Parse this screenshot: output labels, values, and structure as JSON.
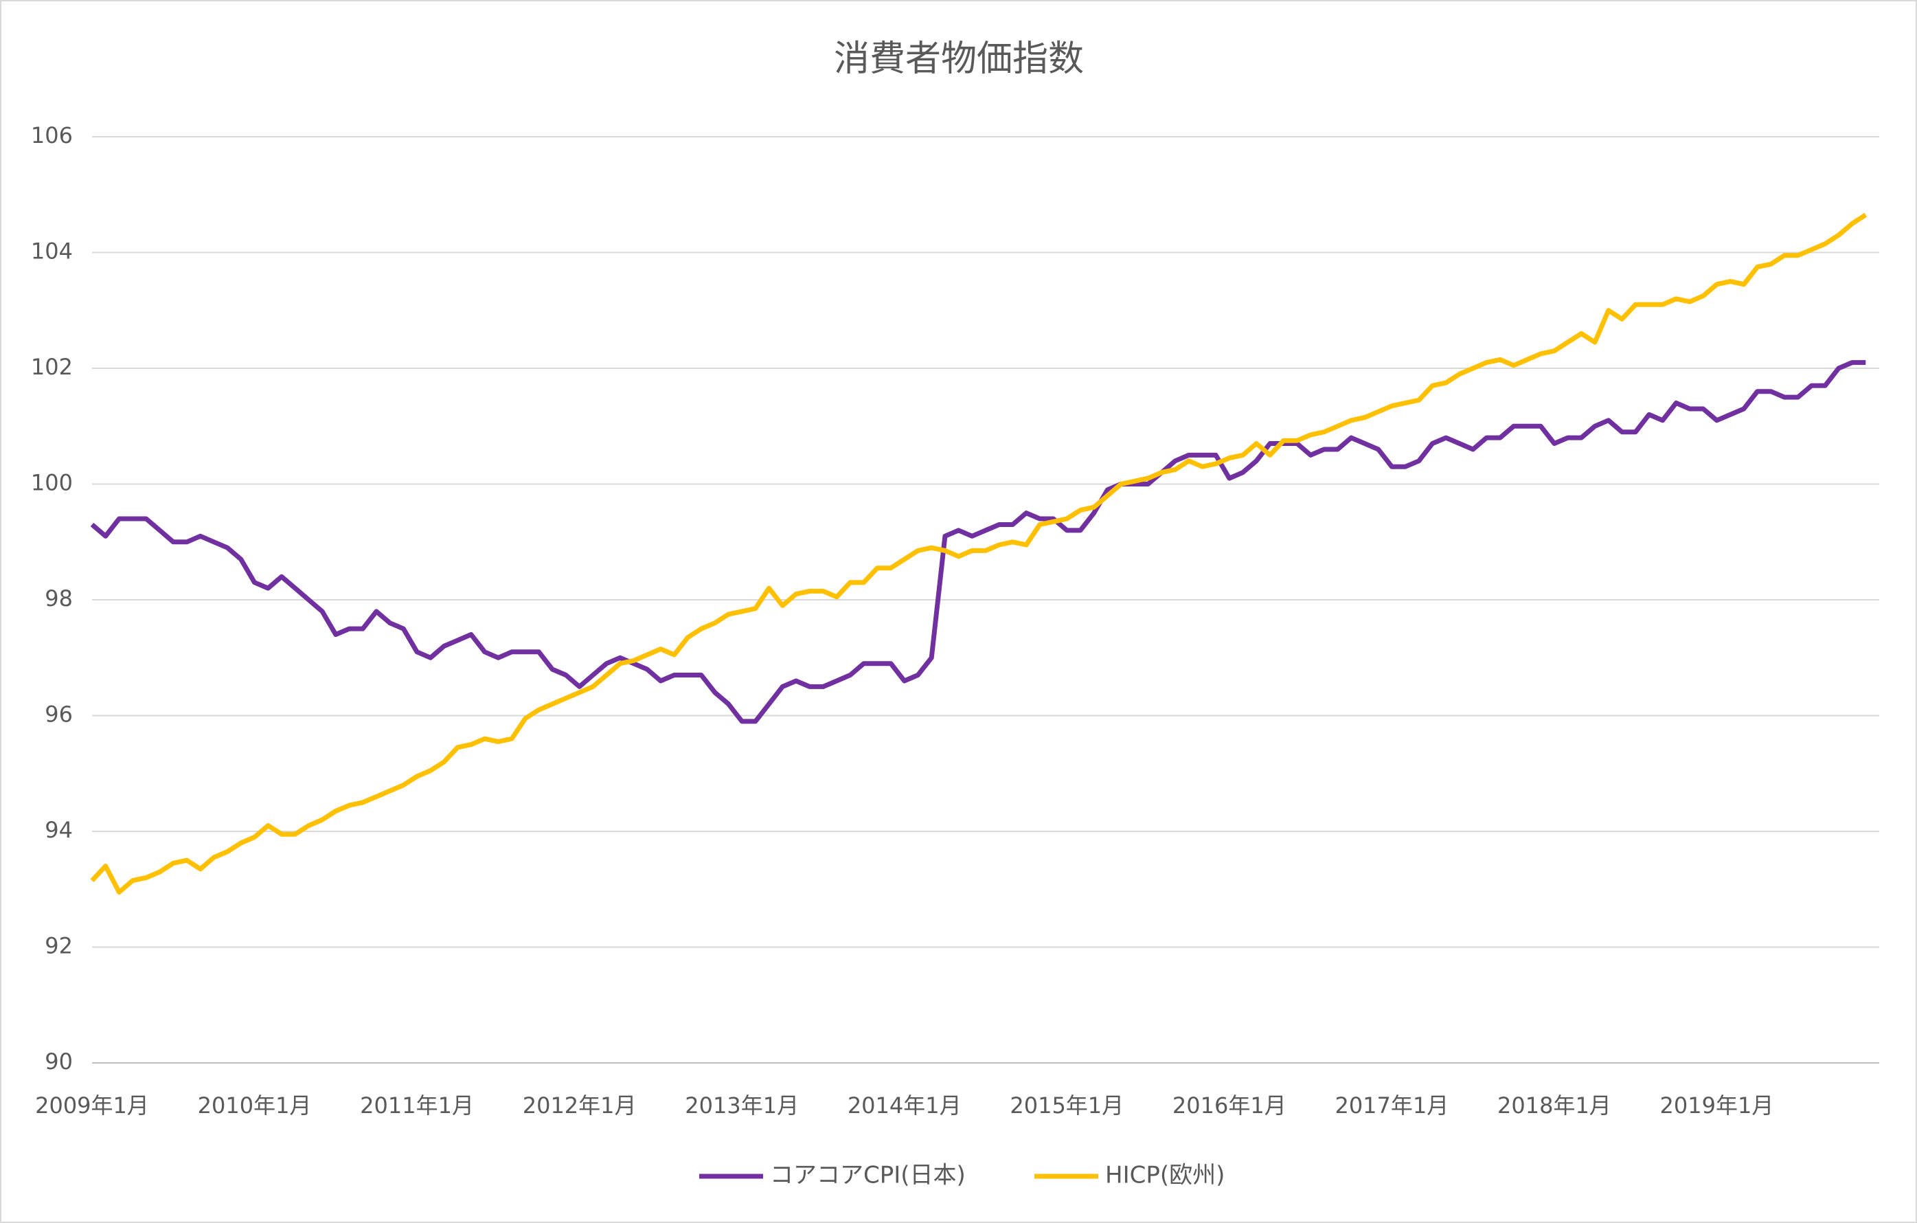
{
  "chart_data": {
    "type": "line",
    "title": "消費者物価指数",
    "categories": [
      "2009年1月",
      null,
      null,
      null,
      null,
      null,
      null,
      null,
      null,
      null,
      null,
      null,
      "2010年1月",
      null,
      null,
      null,
      null,
      null,
      null,
      null,
      null,
      null,
      null,
      null,
      "2011年1月",
      null,
      null,
      null,
      null,
      null,
      null,
      null,
      null,
      null,
      null,
      null,
      "2012年1月",
      null,
      null,
      null,
      null,
      null,
      null,
      null,
      null,
      null,
      null,
      null,
      "2013年1月",
      null,
      null,
      null,
      null,
      null,
      null,
      null,
      null,
      null,
      null,
      null,
      "2014年1月",
      null,
      null,
      null,
      null,
      null,
      null,
      null,
      null,
      null,
      null,
      null,
      "2015年1月",
      null,
      null,
      null,
      null,
      null,
      null,
      null,
      null,
      null,
      null,
      null,
      "2016年1月",
      null,
      null,
      null,
      null,
      null,
      null,
      null,
      null,
      null,
      null,
      null,
      "2017年1月",
      null,
      null,
      null,
      null,
      null,
      null,
      null,
      null,
      null,
      null,
      null,
      "2018年1月",
      null,
      null,
      null,
      null,
      null,
      null,
      null,
      null,
      null,
      null,
      null,
      "2019年1月",
      null,
      null,
      null,
      null,
      null,
      null,
      null,
      null,
      null,
      null,
      null
    ],
    "series": [
      {
        "name": "コアコアCPI(日本)",
        "color": "#7030a0",
        "values": [
          99.3,
          99.1,
          99.4,
          99.4,
          99.4,
          99.2,
          99.0,
          99.0,
          99.1,
          99.0,
          98.9,
          98.7,
          98.3,
          98.2,
          98.4,
          98.2,
          98.0,
          97.8,
          97.4,
          97.5,
          97.5,
          97.8,
          97.6,
          97.5,
          97.1,
          97.0,
          97.2,
          97.3,
          97.4,
          97.1,
          97.0,
          97.1,
          97.1,
          97.1,
          96.8,
          96.7,
          96.5,
          96.7,
          96.9,
          97.0,
          96.9,
          96.8,
          96.6,
          96.7,
          96.7,
          96.7,
          96.4,
          96.2,
          95.9,
          95.9,
          96.2,
          96.5,
          96.6,
          96.5,
          96.5,
          96.6,
          96.7,
          96.9,
          96.9,
          96.9,
          96.6,
          96.7,
          97.0,
          99.1,
          99.2,
          99.1,
          99.2,
          99.3,
          99.3,
          99.5,
          99.4,
          99.4,
          99.2,
          99.2,
          99.5,
          99.9,
          100.0,
          100.0,
          100.0,
          100.2,
          100.4,
          100.5,
          100.5,
          100.5,
          100.1,
          100.2,
          100.4,
          100.7,
          100.7,
          100.7,
          100.5,
          100.6,
          100.6,
          100.8,
          100.7,
          100.6,
          100.3,
          100.3,
          100.4,
          100.7,
          100.8,
          100.7,
          100.6,
          100.8,
          100.8,
          101.0,
          101.0,
          101.0,
          100.7,
          100.8,
          100.8,
          101.0,
          101.1,
          100.9,
          100.9,
          101.2,
          101.1,
          101.4,
          101.3,
          101.3,
          101.1,
          101.2,
          101.3,
          101.6,
          101.6,
          101.5,
          101.5,
          101.7,
          101.7,
          102.0,
          102.1,
          102.1
        ]
      },
      {
        "name": "HICP(欧州)",
        "color": "#ffc000",
        "values": [
          93.15,
          93.4,
          92.95,
          93.15,
          93.2,
          93.3,
          93.45,
          93.5,
          93.35,
          93.55,
          93.65,
          93.8,
          93.9,
          94.1,
          93.95,
          93.95,
          94.1,
          94.2,
          94.35,
          94.45,
          94.5,
          94.6,
          94.7,
          94.8,
          94.95,
          95.05,
          95.2,
          95.45,
          95.5,
          95.6,
          95.55,
          95.6,
          95.95,
          96.1,
          96.2,
          96.3,
          96.4,
          96.5,
          96.7,
          96.9,
          96.95,
          97.05,
          97.15,
          97.05,
          97.35,
          97.5,
          97.6,
          97.75,
          97.8,
          97.85,
          98.2,
          97.9,
          98.1,
          98.15,
          98.15,
          98.05,
          98.3,
          98.3,
          98.55,
          98.55,
          98.7,
          98.85,
          98.9,
          98.85,
          98.75,
          98.85,
          98.85,
          98.95,
          99.0,
          98.95,
          99.3,
          99.35,
          99.4,
          99.55,
          99.6,
          99.8,
          100.0,
          100.05,
          100.1,
          100.2,
          100.25,
          100.4,
          100.3,
          100.35,
          100.45,
          100.5,
          100.7,
          100.5,
          100.75,
          100.75,
          100.85,
          100.9,
          101.0,
          101.1,
          101.15,
          101.25,
          101.35,
          101.4,
          101.45,
          101.7,
          101.75,
          101.9,
          102.0,
          102.1,
          102.15,
          102.05,
          102.15,
          102.25,
          102.3,
          102.45,
          102.6,
          102.45,
          103.0,
          102.85,
          103.1,
          103.1,
          103.1,
          103.2,
          103.15,
          103.25,
          103.45,
          103.5,
          103.45,
          103.75,
          103.8,
          103.95,
          103.95,
          104.05,
          104.15,
          104.3,
          104.5,
          104.65
        ]
      }
    ],
    "ylim": [
      90,
      106
    ],
    "yticks": [
      90,
      92,
      94,
      96,
      98,
      100,
      102,
      104,
      106
    ],
    "grid": true,
    "legend": "bottom"
  }
}
